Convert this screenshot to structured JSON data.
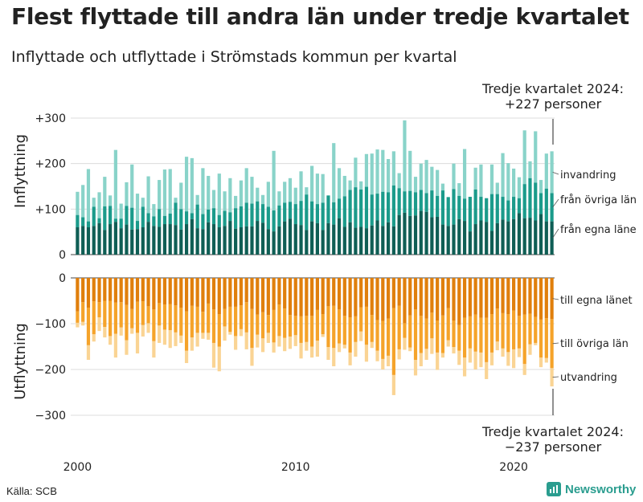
{
  "title": "Flest flyttade till andra län under tredje kvartalet",
  "subtitle": "Inflyttade och utflyttade i Strömstads kommun per kvartal",
  "source": "Källa: SCB",
  "brand": {
    "name": "Newsworthy",
    "icon": "bar-chart-icon",
    "color": "#2a9d8f"
  },
  "chart_data": {
    "type": "bar",
    "stacked": true,
    "grid": "horizontal",
    "x_ticks": [
      "2000",
      "2010",
      "2020"
    ],
    "x_range": [
      "2000Q1",
      "2024Q3"
    ],
    "in_panel": {
      "ylabel": "Inflyttning",
      "ylim": [
        0,
        300
      ],
      "y_ticks": [
        "0",
        "+100",
        "+200",
        "+300"
      ],
      "colors": {
        "local": "#0f5e55",
        "domestic": "#1b9b8b",
        "abroad": "#89d3c9"
      },
      "labels": {
        "local": "från egna läne",
        "domestic": "från övriga län",
        "abroad": "invandring"
      },
      "total": [
        138,
        153,
        188,
        125,
        137,
        171,
        130,
        230,
        112,
        159,
        198,
        134,
        125,
        172,
        111,
        164,
        187,
        188,
        125,
        158,
        215,
        212,
        131,
        190,
        173,
        142,
        178,
        139,
        168,
        129,
        163,
        190,
        171,
        147,
        131,
        160,
        228,
        139,
        160,
        168,
        147,
        183,
        148,
        195,
        178,
        177,
        112,
        245,
        190,
        173,
        163,
        213,
        161,
        221,
        222,
        231,
        230,
        210,
        227,
        179,
        295,
        228,
        171,
        200,
        208,
        193,
        186,
        156,
        127,
        200,
        157,
        232,
        122,
        191,
        198,
        121,
        198,
        158,
        223,
        201,
        189,
        170,
        273,
        205,
        271,
        164,
        222,
        227
      ],
      "local": [
        60,
        63,
        60,
        63,
        69,
        54,
        67,
        72,
        58,
        66,
        55,
        56,
        60,
        72,
        63,
        61,
        67,
        67,
        65,
        55,
        67,
        78,
        58,
        56,
        71,
        67,
        60,
        63,
        74,
        57,
        60,
        62,
        62,
        74,
        70,
        56,
        51,
        62,
        73,
        79,
        67,
        65,
        54,
        73,
        69,
        54,
        69,
        66,
        80,
        61,
        71,
        59,
        61,
        58,
        64,
        75,
        63,
        71,
        62,
        87,
        92,
        85,
        86,
        96,
        94,
        82,
        83,
        66,
        63,
        66,
        78,
        74,
        51,
        67,
        75,
        72,
        52,
        69,
        77,
        73,
        78,
        91,
        80,
        81,
        75,
        89,
        73,
        73
      ],
      "domestic": [
        87,
        82,
        73,
        105,
        80,
        106,
        107,
        79,
        79,
        107,
        103,
        74,
        105,
        91,
        84,
        100,
        85,
        90,
        114,
        100,
        95,
        91,
        110,
        89,
        99,
        102,
        87,
        96,
        93,
        102,
        106,
        114,
        112,
        117,
        111,
        105,
        97,
        108,
        114,
        116,
        111,
        118,
        132,
        117,
        111,
        114,
        130,
        115,
        123,
        128,
        142,
        148,
        143,
        149,
        132,
        134,
        138,
        137,
        152,
        146,
        139,
        140,
        137,
        142,
        135,
        141,
        129,
        141,
        126,
        144,
        129,
        123,
        127,
        143,
        127,
        124,
        133,
        133,
        127,
        119,
        127,
        124,
        155,
        168,
        158,
        135,
        145,
        135
      ]
    },
    "out_panel": {
      "ylabel": "Utflyttning",
      "ylim": [
        -300,
        0
      ],
      "y_ticks": [
        "0",
        "−100",
        "−200",
        "−300"
      ],
      "colors": {
        "local": "#e07f0c",
        "domestic": "#f5a32a",
        "abroad": "#fad494"
      },
      "labels": {
        "local": "till egna länet",
        "domestic": "till övriga län",
        "abroad": "utvandring"
      },
      "total": [
        -108,
        -104,
        -179,
        -139,
        -116,
        -130,
        -146,
        -174,
        -126,
        -168,
        -122,
        -165,
        -128,
        -120,
        -174,
        -142,
        -146,
        -153,
        -149,
        -142,
        -186,
        -159,
        -150,
        -133,
        -135,
        -196,
        -204,
        -137,
        -124,
        -157,
        -127,
        -156,
        -192,
        -152,
        -162,
        -142,
        -163,
        -150,
        -160,
        -155,
        -149,
        -176,
        -159,
        -174,
        -172,
        -129,
        -179,
        -193,
        -162,
        -154,
        -191,
        -172,
        -138,
        -183,
        -153,
        -182,
        -200,
        -193,
        -256,
        -178,
        -157,
        -160,
        -213,
        -193,
        -179,
        -166,
        -201,
        -174,
        -150,
        -165,
        -190,
        -215,
        -185,
        -200,
        -195,
        -221,
        -191,
        -158,
        -172,
        -192,
        -197,
        -173,
        -212,
        -168,
        -147,
        -195,
        -185,
        -237
      ],
      "local": [
        -73,
        -53,
        -65,
        -51,
        -53,
        -50,
        -50,
        -54,
        -53,
        -59,
        -68,
        -52,
        -51,
        -62,
        -69,
        -55,
        -58,
        -57,
        -60,
        -65,
        -73,
        -61,
        -63,
        -74,
        -56,
        -69,
        -79,
        -68,
        -63,
        -63,
        -60,
        -53,
        -68,
        -80,
        -75,
        -81,
        -70,
        -58,
        -67,
        -81,
        -83,
        -84,
        -83,
        -83,
        -70,
        -79,
        -62,
        -61,
        -69,
        -83,
        -86,
        -84,
        -64,
        -63,
        -81,
        -92,
        -94,
        -89,
        -66,
        -61,
        -99,
        -82,
        -69,
        -83,
        -89,
        -76,
        -93,
        -82,
        -66,
        -93,
        -103,
        -87,
        -84,
        -80,
        -87,
        -87,
        -79,
        -67,
        -77,
        -79,
        -71,
        -83,
        -80,
        -78,
        -85,
        -91,
        -88,
        -90
      ],
      "domestic": [
        -98,
        -96,
        -147,
        -123,
        -86,
        -107,
        -127,
        -122,
        -108,
        -136,
        -110,
        -120,
        -103,
        -99,
        -138,
        -104,
        -113,
        -114,
        -119,
        -126,
        -159,
        -130,
        -120,
        -120,
        -120,
        -142,
        -150,
        -106,
        -118,
        -127,
        -112,
        -119,
        -153,
        -124,
        -132,
        -120,
        -141,
        -127,
        -131,
        -128,
        -125,
        -142,
        -140,
        -150,
        -137,
        -123,
        -151,
        -153,
        -143,
        -146,
        -163,
        -140,
        -117,
        -146,
        -140,
        -159,
        -177,
        -170,
        -212,
        -156,
        -131,
        -152,
        -179,
        -164,
        -155,
        -132,
        -163,
        -164,
        -136,
        -151,
        -159,
        -174,
        -154,
        -161,
        -163,
        -184,
        -163,
        -139,
        -154,
        -162,
        -156,
        -154,
        -188,
        -145,
        -142,
        -174,
        -175,
        -197
      ]
    },
    "annotation_top": {
      "line1": "Tredje kvartalet 2024:",
      "line2": "+227 personer"
    },
    "annotation_bottom": {
      "line1": "Tredje kvartalet 2024:",
      "line2": "−237 personer"
    }
  }
}
